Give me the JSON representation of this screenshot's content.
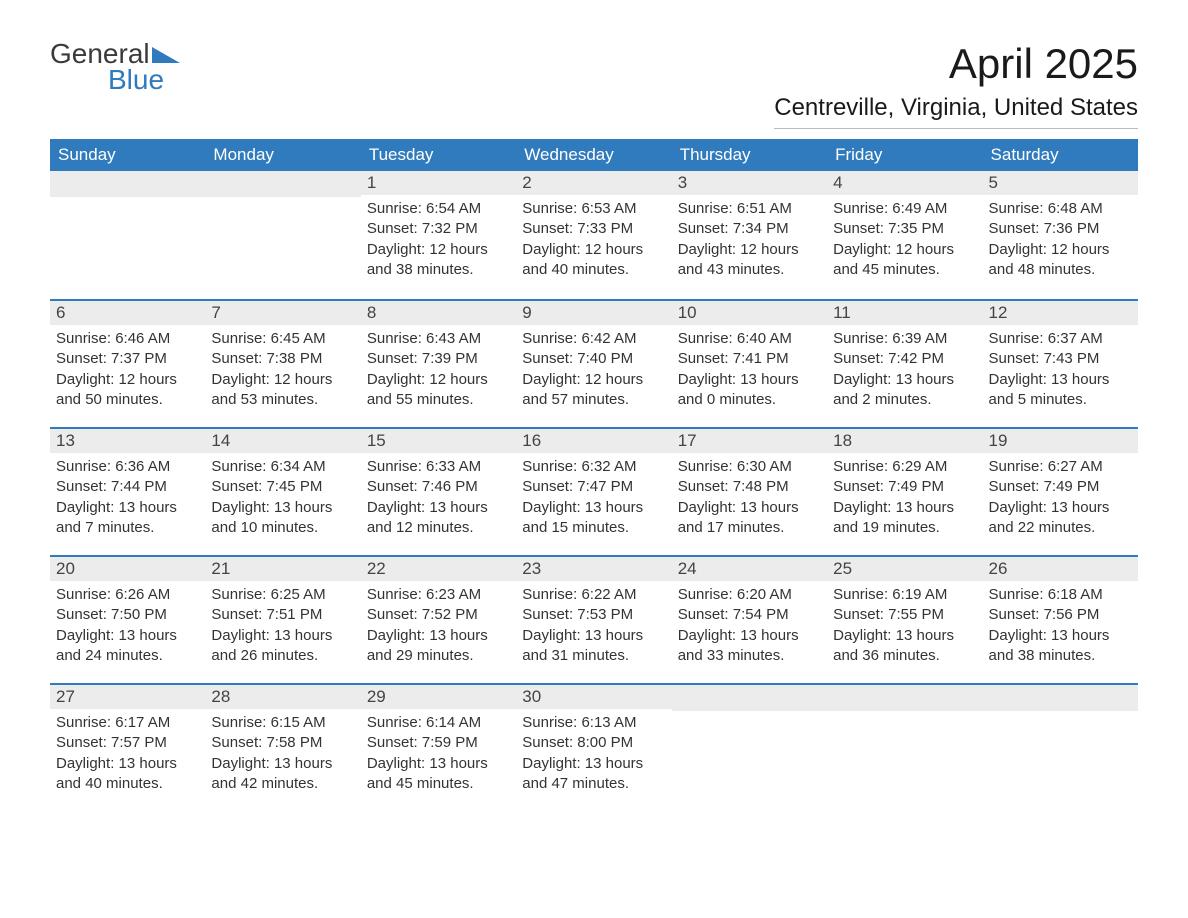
{
  "logo": {
    "line1": "General",
    "line2": "Blue",
    "color_text": "#3a3a3a",
    "color_accent": "#2f7bbd"
  },
  "title": "April 2025",
  "location": "Centreville, Virginia, United States",
  "colors": {
    "header_bg": "#2f7bbd",
    "header_text": "#ffffff",
    "daynum_bg": "#ececec",
    "row_border": "#2f7bbd",
    "body_text": "#333333",
    "background": "#ffffff"
  },
  "daysOfWeek": [
    "Sunday",
    "Monday",
    "Tuesday",
    "Wednesday",
    "Thursday",
    "Friday",
    "Saturday"
  ],
  "weeks": [
    [
      null,
      null,
      {
        "n": "1",
        "sunrise": "6:54 AM",
        "sunset": "7:32 PM",
        "daylight": "12 hours and 38 minutes."
      },
      {
        "n": "2",
        "sunrise": "6:53 AM",
        "sunset": "7:33 PM",
        "daylight": "12 hours and 40 minutes."
      },
      {
        "n": "3",
        "sunrise": "6:51 AM",
        "sunset": "7:34 PM",
        "daylight": "12 hours and 43 minutes."
      },
      {
        "n": "4",
        "sunrise": "6:49 AM",
        "sunset": "7:35 PM",
        "daylight": "12 hours and 45 minutes."
      },
      {
        "n": "5",
        "sunrise": "6:48 AM",
        "sunset": "7:36 PM",
        "daylight": "12 hours and 48 minutes."
      }
    ],
    [
      {
        "n": "6",
        "sunrise": "6:46 AM",
        "sunset": "7:37 PM",
        "daylight": "12 hours and 50 minutes."
      },
      {
        "n": "7",
        "sunrise": "6:45 AM",
        "sunset": "7:38 PM",
        "daylight": "12 hours and 53 minutes."
      },
      {
        "n": "8",
        "sunrise": "6:43 AM",
        "sunset": "7:39 PM",
        "daylight": "12 hours and 55 minutes."
      },
      {
        "n": "9",
        "sunrise": "6:42 AM",
        "sunset": "7:40 PM",
        "daylight": "12 hours and 57 minutes."
      },
      {
        "n": "10",
        "sunrise": "6:40 AM",
        "sunset": "7:41 PM",
        "daylight": "13 hours and 0 minutes."
      },
      {
        "n": "11",
        "sunrise": "6:39 AM",
        "sunset": "7:42 PM",
        "daylight": "13 hours and 2 minutes."
      },
      {
        "n": "12",
        "sunrise": "6:37 AM",
        "sunset": "7:43 PM",
        "daylight": "13 hours and 5 minutes."
      }
    ],
    [
      {
        "n": "13",
        "sunrise": "6:36 AM",
        "sunset": "7:44 PM",
        "daylight": "13 hours and 7 minutes."
      },
      {
        "n": "14",
        "sunrise": "6:34 AM",
        "sunset": "7:45 PM",
        "daylight": "13 hours and 10 minutes."
      },
      {
        "n": "15",
        "sunrise": "6:33 AM",
        "sunset": "7:46 PM",
        "daylight": "13 hours and 12 minutes."
      },
      {
        "n": "16",
        "sunrise": "6:32 AM",
        "sunset": "7:47 PM",
        "daylight": "13 hours and 15 minutes."
      },
      {
        "n": "17",
        "sunrise": "6:30 AM",
        "sunset": "7:48 PM",
        "daylight": "13 hours and 17 minutes."
      },
      {
        "n": "18",
        "sunrise": "6:29 AM",
        "sunset": "7:49 PM",
        "daylight": "13 hours and 19 minutes."
      },
      {
        "n": "19",
        "sunrise": "6:27 AM",
        "sunset": "7:49 PM",
        "daylight": "13 hours and 22 minutes."
      }
    ],
    [
      {
        "n": "20",
        "sunrise": "6:26 AM",
        "sunset": "7:50 PM",
        "daylight": "13 hours and 24 minutes."
      },
      {
        "n": "21",
        "sunrise": "6:25 AM",
        "sunset": "7:51 PM",
        "daylight": "13 hours and 26 minutes."
      },
      {
        "n": "22",
        "sunrise": "6:23 AM",
        "sunset": "7:52 PM",
        "daylight": "13 hours and 29 minutes."
      },
      {
        "n": "23",
        "sunrise": "6:22 AM",
        "sunset": "7:53 PM",
        "daylight": "13 hours and 31 minutes."
      },
      {
        "n": "24",
        "sunrise": "6:20 AM",
        "sunset": "7:54 PM",
        "daylight": "13 hours and 33 minutes."
      },
      {
        "n": "25",
        "sunrise": "6:19 AM",
        "sunset": "7:55 PM",
        "daylight": "13 hours and 36 minutes."
      },
      {
        "n": "26",
        "sunrise": "6:18 AM",
        "sunset": "7:56 PM",
        "daylight": "13 hours and 38 minutes."
      }
    ],
    [
      {
        "n": "27",
        "sunrise": "6:17 AM",
        "sunset": "7:57 PM",
        "daylight": "13 hours and 40 minutes."
      },
      {
        "n": "28",
        "sunrise": "6:15 AM",
        "sunset": "7:58 PM",
        "daylight": "13 hours and 42 minutes."
      },
      {
        "n": "29",
        "sunrise": "6:14 AM",
        "sunset": "7:59 PM",
        "daylight": "13 hours and 45 minutes."
      },
      {
        "n": "30",
        "sunrise": "6:13 AM",
        "sunset": "8:00 PM",
        "daylight": "13 hours and 47 minutes."
      },
      null,
      null,
      null
    ]
  ],
  "labels": {
    "sunrise": "Sunrise:",
    "sunset": "Sunset:",
    "daylight": "Daylight:"
  }
}
